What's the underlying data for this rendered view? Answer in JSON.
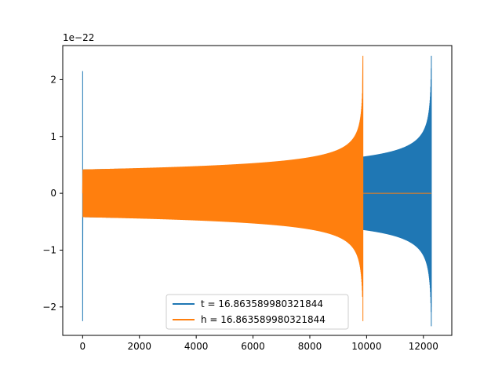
{
  "chart_data": {
    "type": "line",
    "title": "",
    "xlabel": "",
    "ylabel": "",
    "y_offset_label": "1e−22",
    "xlim": [
      -700,
      13000
    ],
    "ylim": [
      -2.5,
      2.6
    ],
    "x_ticks": [
      0,
      2000,
      4000,
      6000,
      8000,
      10000,
      12000
    ],
    "y_ticks": [
      -2,
      -1,
      0,
      1,
      2
    ],
    "y_tick_labels": [
      "−2",
      "−1",
      "0",
      "1",
      "2"
    ],
    "grid": false,
    "legend_position": "lower center",
    "series": [
      {
        "name": "t = 16.863589980321844",
        "color": "#1f77b4",
        "description_points": {
          "spike_x": 0,
          "spike_ymax": 2.15,
          "spike_ymin": -2.25,
          "start_amplitude": 0.42,
          "x_at_shift": 9870,
          "amplitude_at_shift": 0.58,
          "end_x": 12280,
          "end_ymax": 2.42,
          "end_ymin": -2.0
        }
      },
      {
        "name": "h = 16.863589980321844",
        "color": "#ff7f0e",
        "description_points": {
          "start_x": 0,
          "start_amplitude": 0.42,
          "peak_x": 9870,
          "peak_ymax": 2.42,
          "peak_ymin": -2.25,
          "flat_from_x": 9900,
          "flat_to_x": 12280,
          "flat_value": 0
        }
      }
    ]
  }
}
